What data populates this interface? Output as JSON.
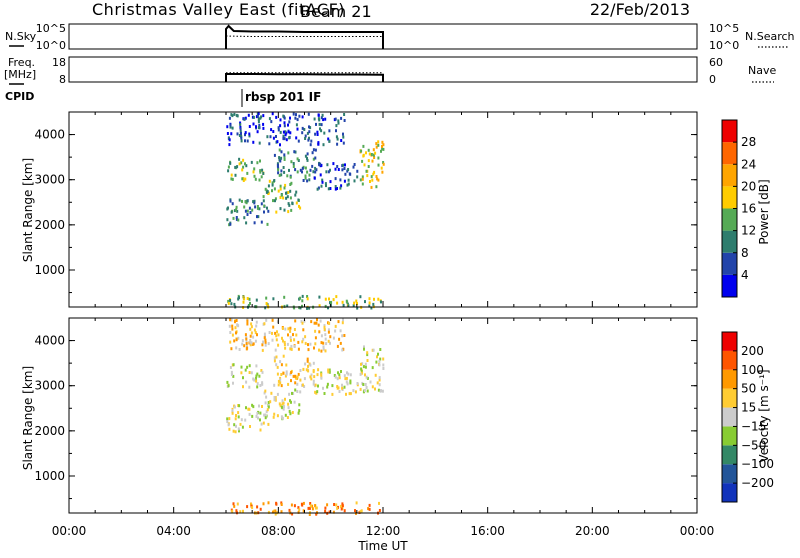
{
  "header": {
    "station": "Christmas Valley East (fitACF)",
    "beam": "Beam 21",
    "date": "22/Feb/2013"
  },
  "panels": {
    "nsky": {
      "left_label": "N.Sky",
      "right_label": "N.Search",
      "ticks_left": [
        "10^5",
        "10^0"
      ],
      "ticks_right": [
        "10^5",
        "10^0"
      ]
    },
    "freq": {
      "left_label_1": "Freq.",
      "left_label_2": "[MHz]",
      "right_label": "Nave",
      "ticks_left": [
        "18",
        "8"
      ],
      "ticks_right": [
        "60",
        "0"
      ]
    },
    "cpid": {
      "label": "CPID",
      "program": "rbsp 201 IF"
    }
  },
  "power_legend": {
    "title": "Power [dB]",
    "ticks": [
      "28",
      "24",
      "20",
      "16",
      "12",
      "8",
      "4"
    ]
  },
  "velocity_legend": {
    "title": "Velocity [m s⁻¹]",
    "ticks": [
      "200",
      "100",
      "50",
      "15",
      "−15",
      "−50",
      "−100",
      "−200"
    ]
  },
  "colors": {
    "power_scale": [
      "#0000ee",
      "#2244aa",
      "#2e7d6e",
      "#55aa55",
      "#ffcc00",
      "#ffa500",
      "#ff6600",
      "#ee0000"
    ],
    "velocity_scale": [
      "#1133bb",
      "#225599",
      "#338866",
      "#88cc33",
      "#cccccc",
      "#ffcc33",
      "#ff9900",
      "#ff5500",
      "#ee0000"
    ]
  },
  "chart_data": [
    {
      "type": "line",
      "name": "nsky_nsearch",
      "xlabel": "",
      "ylabel": "N.Sky",
      "ylabel_right": "N.Search",
      "x_range": [
        "00:00",
        "24:00"
      ],
      "series": [
        {
          "name": "N.Sky",
          "x": [
            6.0,
            6.1,
            6.3,
            7.0,
            8.0,
            9.0,
            10.0,
            11.0,
            12.0
          ],
          "y": [
            4.0,
            4.6,
            3.6,
            3.5,
            3.5,
            3.4,
            3.4,
            3.4,
            3.4
          ]
        },
        {
          "name": "N.Search",
          "x": [
            6.0,
            7.0,
            8.0,
            9.0,
            10.0,
            11.0,
            12.0
          ],
          "y": [
            2.6,
            2.5,
            2.5,
            2.5,
            2.5,
            2.5,
            2.5
          ]
        }
      ]
    },
    {
      "type": "line",
      "name": "freq_nave",
      "xlabel": "",
      "ylabel": "Freq. [MHz]",
      "ylabel_right": "Nave",
      "ylim": [
        8,
        18
      ],
      "ylim_right": [
        0,
        60
      ],
      "x_range": [
        "00:00",
        "24:00"
      ],
      "series": [
        {
          "name": "Freq.",
          "x": [
            6.0,
            7.0,
            8.0,
            9.0,
            10.0,
            11.0,
            12.0
          ],
          "y": [
            11.2,
            11.2,
            11.1,
            11.1,
            11.0,
            11.0,
            10.9
          ]
        },
        {
          "name": "Nave",
          "x": [
            6.0,
            7.0,
            8.0,
            9.0,
            10.0,
            11.0,
            12.0
          ],
          "y": [
            22,
            22,
            22,
            22,
            22,
            22,
            22
          ]
        }
      ]
    },
    {
      "type": "heatmap",
      "name": "power",
      "title": "Power [dB]",
      "xlabel": "Time UT",
      "ylabel": "Slant Range [km]",
      "x_ticks": [
        "00:00",
        "04:00",
        "08:00",
        "12:00",
        "16:00",
        "20:00",
        "00:00"
      ],
      "y_ticks": [
        "1000",
        "2000",
        "3000",
        "4000"
      ],
      "ylim": [
        180,
        4500
      ],
      "xlim_hours": [
        0,
        24
      ],
      "colorbar_ticks": [
        4,
        8,
        12,
        16,
        20,
        24,
        28
      ],
      "colorbar_range": [
        0,
        32
      ],
      "regions": [
        {
          "t": [
            6.0,
            7.6
          ],
          "range": [
            2000,
            2600
          ],
          "level": 2
        },
        {
          "t": [
            6.0,
            7.4
          ],
          "range": [
            3000,
            3500
          ],
          "level": 3
        },
        {
          "t": [
            7.4,
            8.8
          ],
          "range": [
            2300,
            3000
          ],
          "level": 3
        },
        {
          "t": [
            7.8,
            9.4
          ],
          "range": [
            3000,
            3700
          ],
          "level": 2
        },
        {
          "t": [
            11.1,
            12.0
          ],
          "range": [
            2800,
            3900
          ],
          "level": 4
        },
        {
          "t": [
            6.0,
            12.0
          ],
          "range": [
            180,
            450
          ],
          "level": 3
        },
        {
          "t": [
            6.0,
            10.5
          ],
          "range": [
            3800,
            4500
          ],
          "level": 1
        },
        {
          "t": [
            9.3,
            11.0
          ],
          "range": [
            2800,
            3400
          ],
          "level": 1
        }
      ]
    },
    {
      "type": "heatmap",
      "name": "velocity",
      "title": "Velocity [m s⁻¹]",
      "xlabel": "Time UT",
      "ylabel": "Slant Range [km]",
      "x_ticks": [
        "00:00",
        "04:00",
        "08:00",
        "12:00",
        "16:00",
        "20:00",
        "00:00"
      ],
      "y_ticks": [
        "1000",
        "2000",
        "3000",
        "4000"
      ],
      "ylim": [
        180,
        4500
      ],
      "xlim_hours": [
        0,
        24
      ],
      "colorbar_ticks": [
        200,
        100,
        50,
        15,
        -15,
        -50,
        -100,
        -200
      ],
      "regions": [
        {
          "t": [
            6.0,
            7.6
          ],
          "range": [
            2000,
            2600
          ],
          "level": 4
        },
        {
          "t": [
            6.0,
            7.4
          ],
          "range": [
            3000,
            3500
          ],
          "level": 4
        },
        {
          "t": [
            7.4,
            8.8
          ],
          "range": [
            2300,
            3000
          ],
          "level": 4
        },
        {
          "t": [
            7.8,
            9.4
          ],
          "range": [
            3000,
            3700
          ],
          "level": 5
        },
        {
          "t": [
            11.1,
            12.0
          ],
          "range": [
            2800,
            3900
          ],
          "level": 4
        },
        {
          "t": [
            6.0,
            12.0
          ],
          "range": [
            180,
            450
          ],
          "level": 6
        },
        {
          "t": [
            6.0,
            10.5
          ],
          "range": [
            3800,
            4500
          ],
          "level": 5
        },
        {
          "t": [
            9.3,
            11.0
          ],
          "range": [
            2800,
            3400
          ],
          "level": 4
        }
      ]
    }
  ]
}
